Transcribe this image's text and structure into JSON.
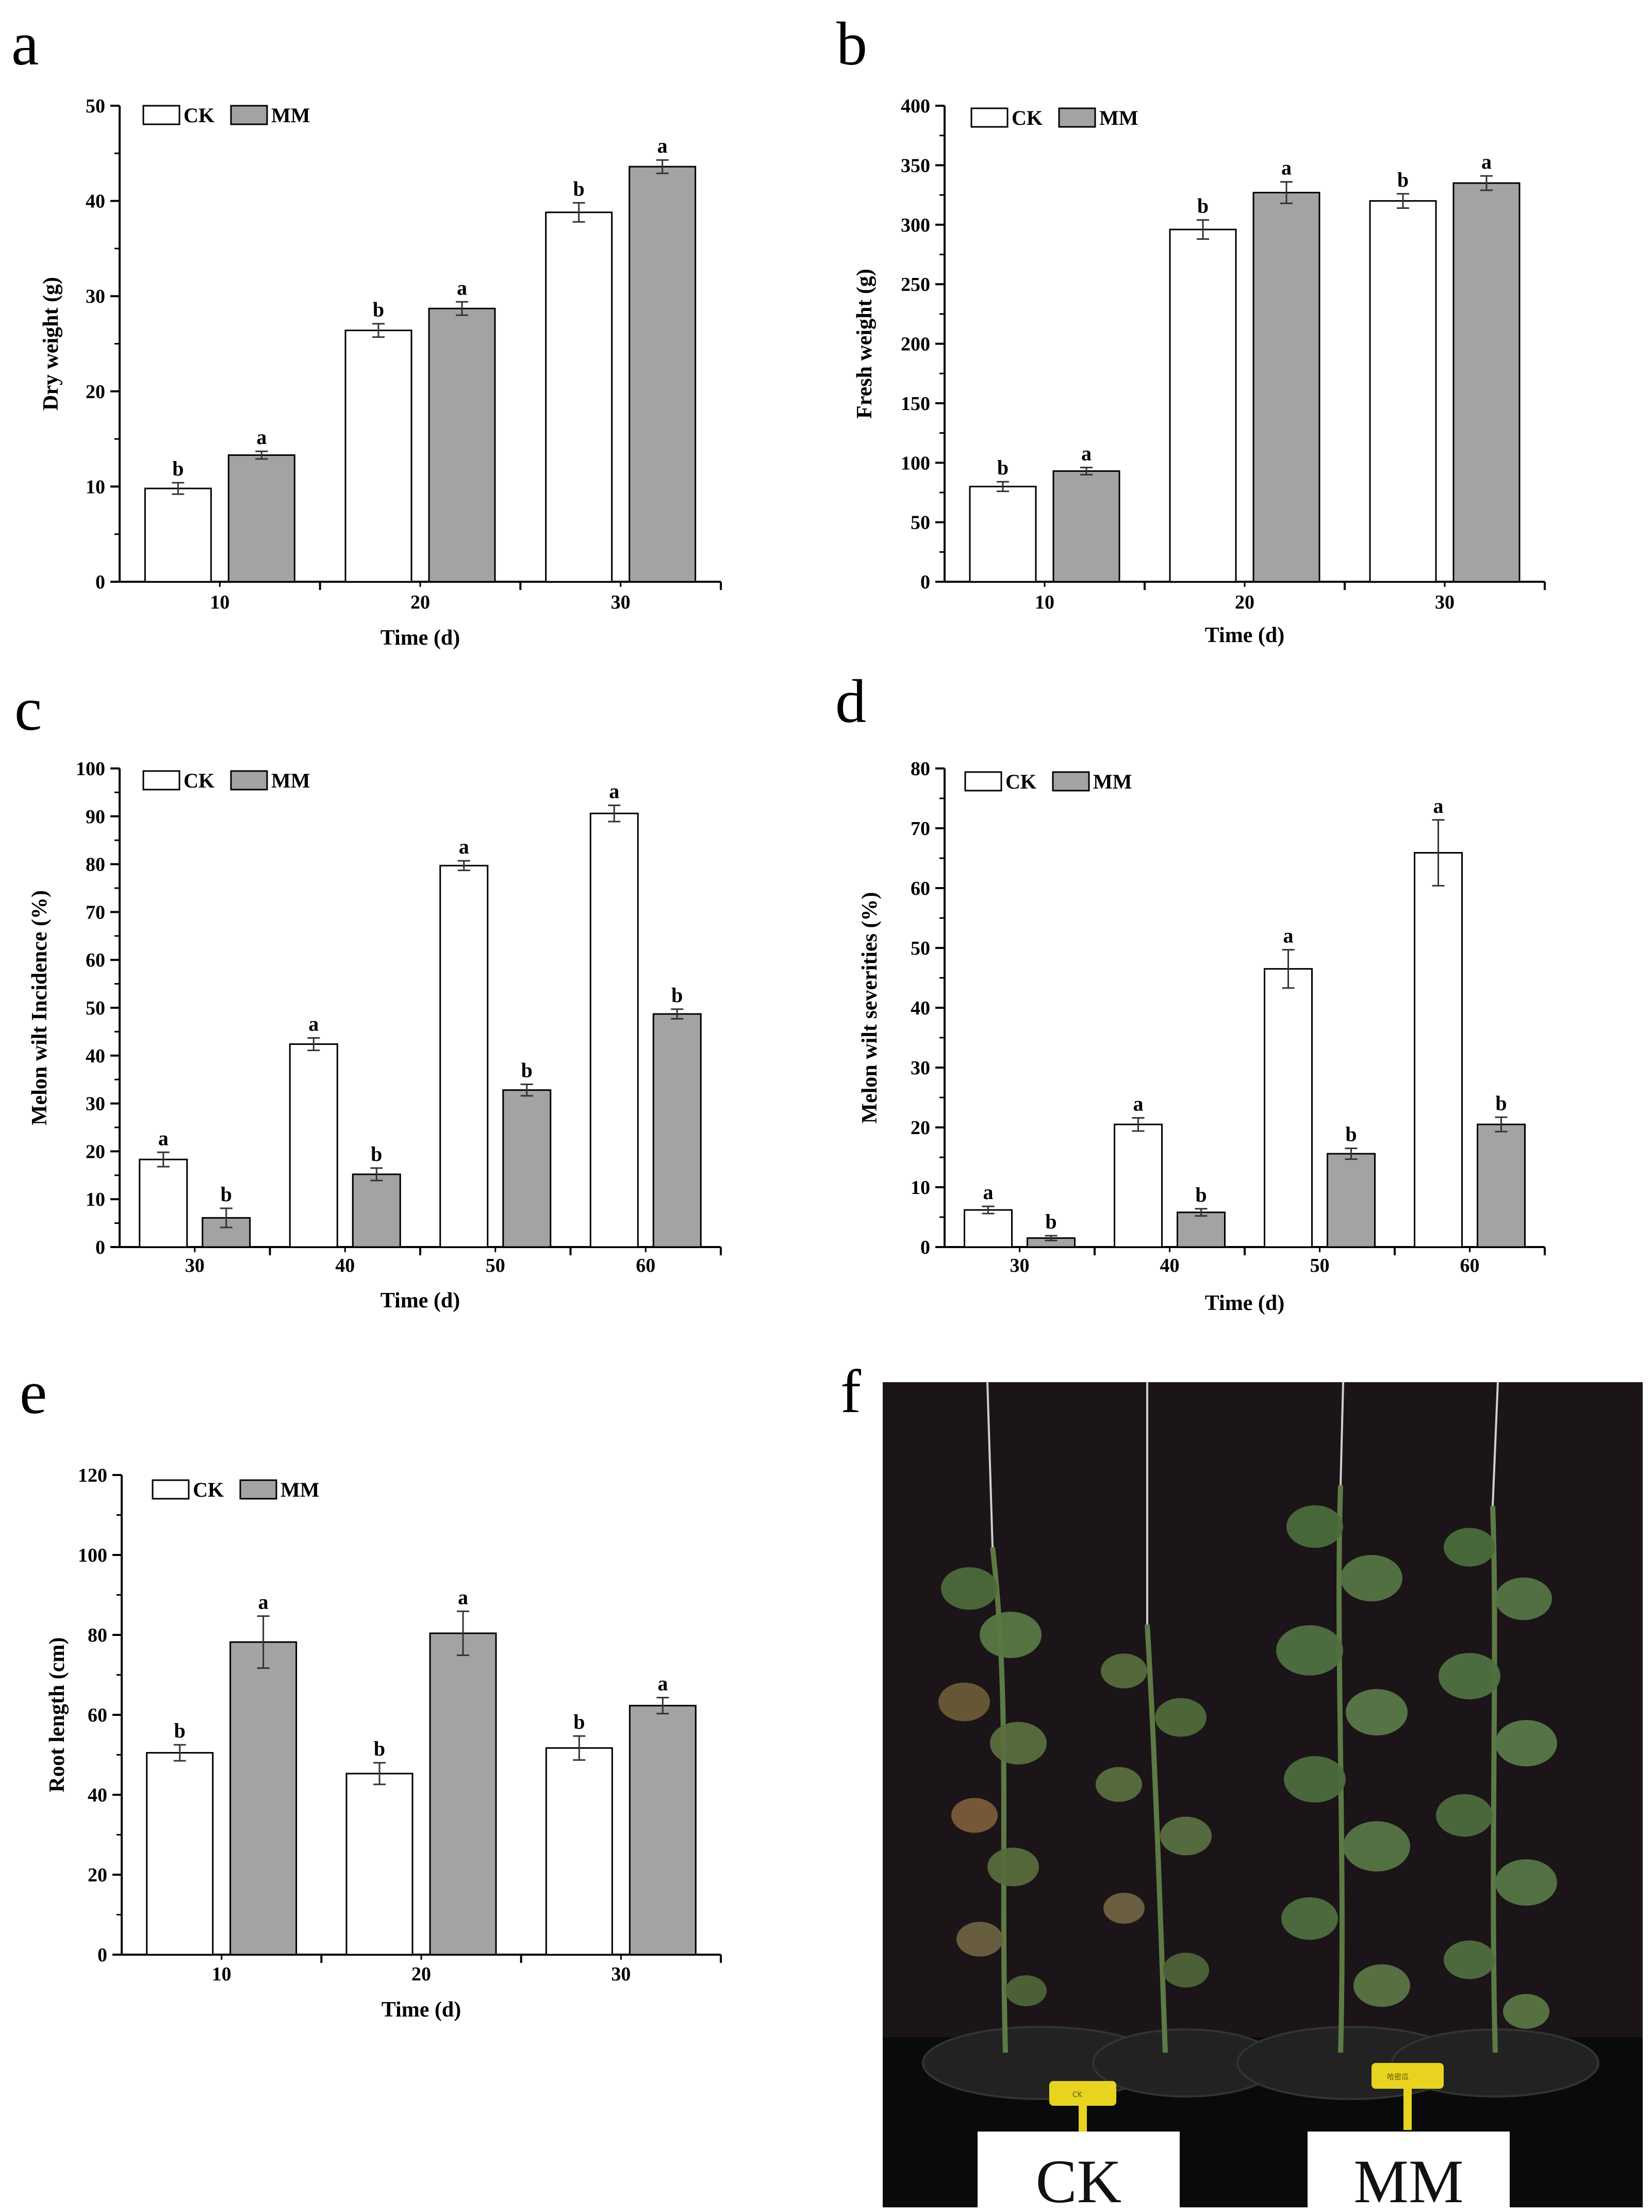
{
  "bar_colors": {
    "CK": "#ffffff",
    "MM": "#a3a3a3"
  },
  "chart_data": [
    {
      "panel": "a",
      "type": "bar",
      "categories": [
        "10",
        "20",
        "30"
      ],
      "xlabel": "Time (d)",
      "ylabel": "Dry weight (g)",
      "ylim": [
        0,
        50
      ],
      "yticks": [
        "0",
        "10",
        "20",
        "30",
        "40",
        "50"
      ],
      "series": [
        {
          "name": "CK",
          "values": [
            9.8,
            26.4,
            38.8
          ],
          "errors": [
            0.6,
            0.7,
            1.0
          ],
          "labels": [
            "b",
            "b",
            "b"
          ]
        },
        {
          "name": "MM",
          "values": [
            13.3,
            28.7,
            43.6
          ],
          "errors": [
            0.4,
            0.7,
            0.7
          ],
          "labels": [
            "a",
            "a",
            "a"
          ]
        }
      ]
    },
    {
      "panel": "b",
      "type": "bar",
      "categories": [
        "10",
        "20",
        "30"
      ],
      "xlabel": "Time (d)",
      "ylabel": "Fresh weight (g)",
      "ylim": [
        0,
        400
      ],
      "yticks": [
        "0",
        "50",
        "100",
        "150",
        "200",
        "250",
        "300",
        "350",
        "400"
      ],
      "series": [
        {
          "name": "CK",
          "values": [
            80,
            296,
            320
          ],
          "errors": [
            4,
            8,
            6
          ],
          "labels": [
            "b",
            "b",
            "b"
          ]
        },
        {
          "name": "MM",
          "values": [
            93,
            327,
            335
          ],
          "errors": [
            3,
            9,
            6
          ],
          "labels": [
            "a",
            "a",
            "a"
          ]
        }
      ]
    },
    {
      "panel": "c",
      "type": "bar",
      "categories": [
        "30",
        "40",
        "50",
        "60"
      ],
      "xlabel": "Time (d)",
      "ylabel": "Melon wilt Incidence (%)",
      "ylim": [
        0,
        100
      ],
      "yticks": [
        "0",
        "10",
        "20",
        "30",
        "40",
        "50",
        "60",
        "70",
        "80",
        "90",
        "100"
      ],
      "series": [
        {
          "name": "CK",
          "values": [
            18.3,
            42.4,
            79.7,
            90.6
          ],
          "errors": [
            1.5,
            1.3,
            1.0,
            1.7
          ],
          "labels": [
            "a",
            "a",
            "a",
            "a"
          ]
        },
        {
          "name": "MM",
          "values": [
            6.1,
            15.2,
            32.8,
            48.7
          ],
          "errors": [
            2.0,
            1.3,
            1.2,
            1.0
          ],
          "labels": [
            "b",
            "b",
            "b",
            "b"
          ]
        }
      ]
    },
    {
      "panel": "d",
      "type": "bar",
      "categories": [
        "30",
        "40",
        "50",
        "60"
      ],
      "xlabel": "Time (d)",
      "ylabel": "Melon wilt  severities (%)",
      "ylim": [
        0,
        80
      ],
      "yticks": [
        "0",
        "10",
        "20",
        "30",
        "40",
        "50",
        "60",
        "70",
        "80"
      ],
      "series": [
        {
          "name": "CK",
          "values": [
            6.2,
            20.5,
            46.5,
            65.9
          ],
          "errors": [
            0.6,
            1.1,
            3.2,
            5.5
          ],
          "labels": [
            "a",
            "a",
            "a",
            "a"
          ]
        },
        {
          "name": "MM",
          "values": [
            1.5,
            5.8,
            15.6,
            20.5
          ],
          "errors": [
            0.4,
            0.6,
            0.9,
            1.2
          ],
          "labels": [
            "b",
            "b",
            "b",
            "b"
          ]
        }
      ]
    },
    {
      "panel": "e",
      "type": "bar",
      "categories": [
        "10",
        "20",
        "30"
      ],
      "xlabel": "Time (d)",
      "ylabel": "Root length (cm)",
      "ylim": [
        0,
        120
      ],
      "yticks": [
        "0",
        "20",
        "40",
        "60",
        "80",
        "100",
        "120"
      ],
      "series": [
        {
          "name": "CK",
          "values": [
            50.5,
            45.3,
            51.7
          ],
          "errors": [
            2.0,
            2.7,
            3.0
          ],
          "labels": [
            "b",
            "b",
            "b"
          ]
        },
        {
          "name": "MM",
          "values": [
            78.2,
            80.4,
            62.3
          ],
          "errors": [
            6.5,
            5.5,
            2.0
          ],
          "labels": [
            "a",
            "a",
            "a"
          ]
        }
      ]
    }
  ],
  "photo": {
    "panel": "f",
    "labels": [
      "CK",
      "MM"
    ],
    "tags": [
      "CK",
      "哈密瓜"
    ]
  }
}
